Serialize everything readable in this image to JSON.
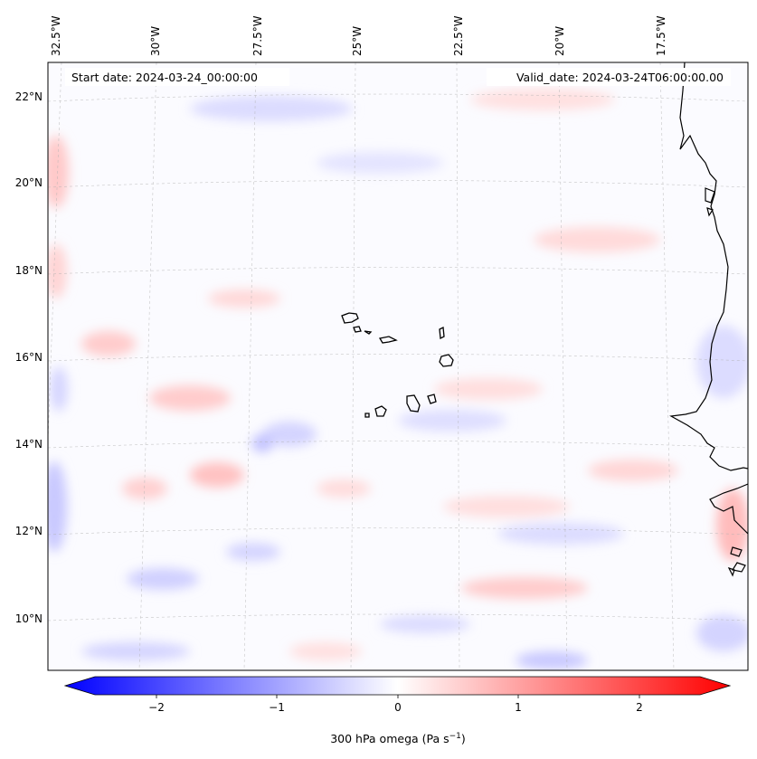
{
  "map": {
    "lon_labels": [
      "32.5°W",
      "30°W",
      "27.5°W",
      "25°W",
      "22.5°W",
      "20°W",
      "17.5°W"
    ],
    "lat_labels": [
      "22°N",
      "20°N",
      "18°N",
      "16°N",
      "14°N",
      "12°N",
      "10°N"
    ],
    "start_date": "Start date: 2024-03-24_00:00:00",
    "valid_date": "Valid_date: 2024-03-24T06:00:00.00",
    "field": "300 hPa omega",
    "colormap": "bwr",
    "colors": {
      "negative": "#0000ff",
      "zero": "#ffffff",
      "positive": "#ff0000",
      "coast": "#000000",
      "grid": "#b0b0b0"
    }
  },
  "colorbar": {
    "ticks": [
      "−2",
      "−1",
      "0",
      "1",
      "2"
    ],
    "range": [
      -2.7,
      2.7
    ],
    "label_main": "300 hPa omega (Pa s",
    "label_sup": "−1",
    "label_end": ")"
  }
}
